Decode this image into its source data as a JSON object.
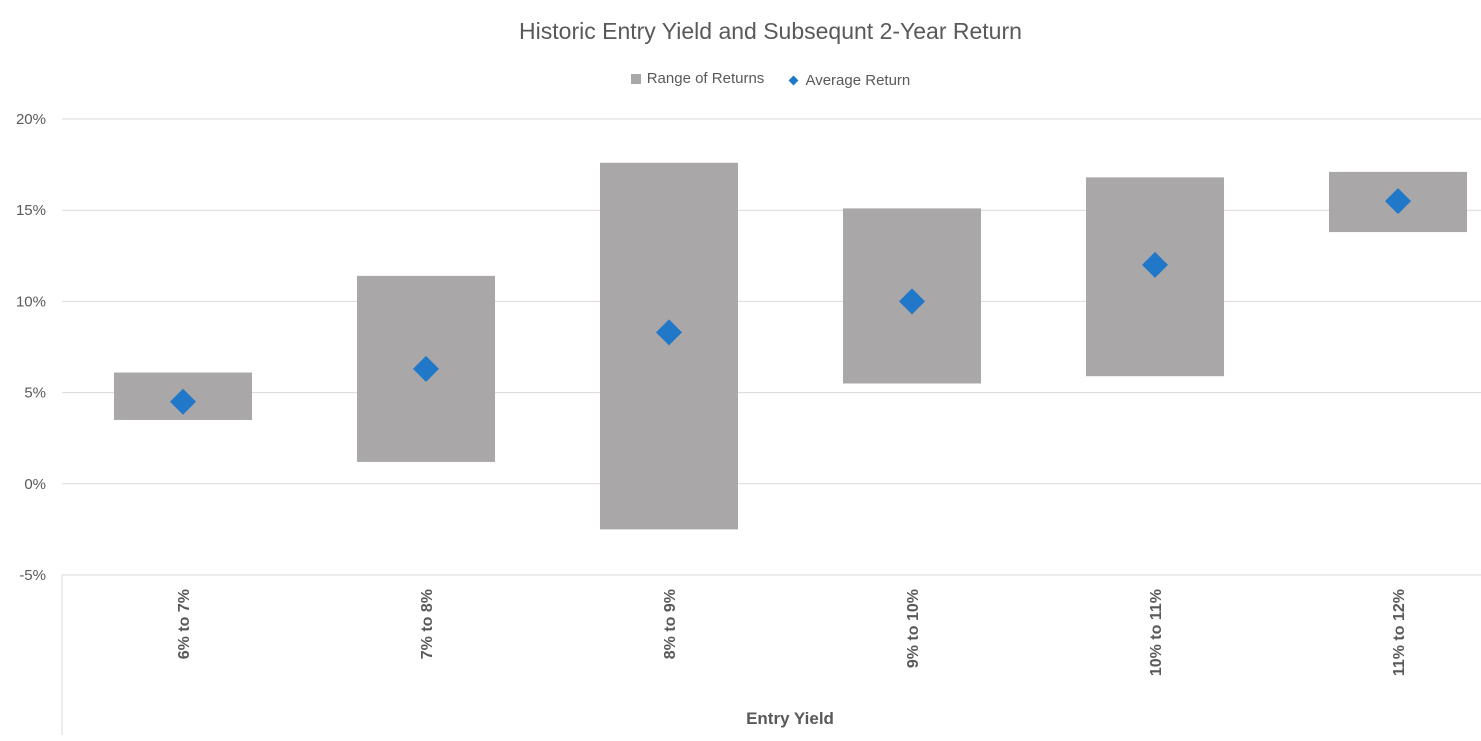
{
  "chart_data": {
    "type": "bar",
    "title": "Historic Entry Yield and Subsequnt 2-Year Return",
    "xlabel": "Entry Yield",
    "ylabel": "",
    "ylim": [
      -5,
      20
    ],
    "yticks": [
      -5,
      0,
      5,
      10,
      15,
      20
    ],
    "ytick_labels": [
      "-5%",
      "0%",
      "5%",
      "10%",
      "15%",
      "20%"
    ],
    "grid": true,
    "legend_position": "top",
    "categories": [
      "6% to 7%",
      "7% to 8%",
      "8% to 9%",
      "9% to 10%",
      "10% to 11%",
      "11% to 12%"
    ],
    "series": [
      {
        "name": "Range of Returns",
        "kind": "floating-bar",
        "color": "#a9a7a7",
        "low": [
          3.5,
          1.2,
          -2.5,
          5.5,
          5.9,
          13.8
        ],
        "high": [
          6.1,
          11.4,
          17.6,
          15.1,
          16.8,
          17.1
        ]
      },
      {
        "name": "Average Return",
        "kind": "marker",
        "marker": "diamond",
        "color": "#2178c9",
        "values": [
          4.5,
          6.3,
          8.3,
          10.0,
          12.0,
          15.5
        ]
      }
    ]
  }
}
